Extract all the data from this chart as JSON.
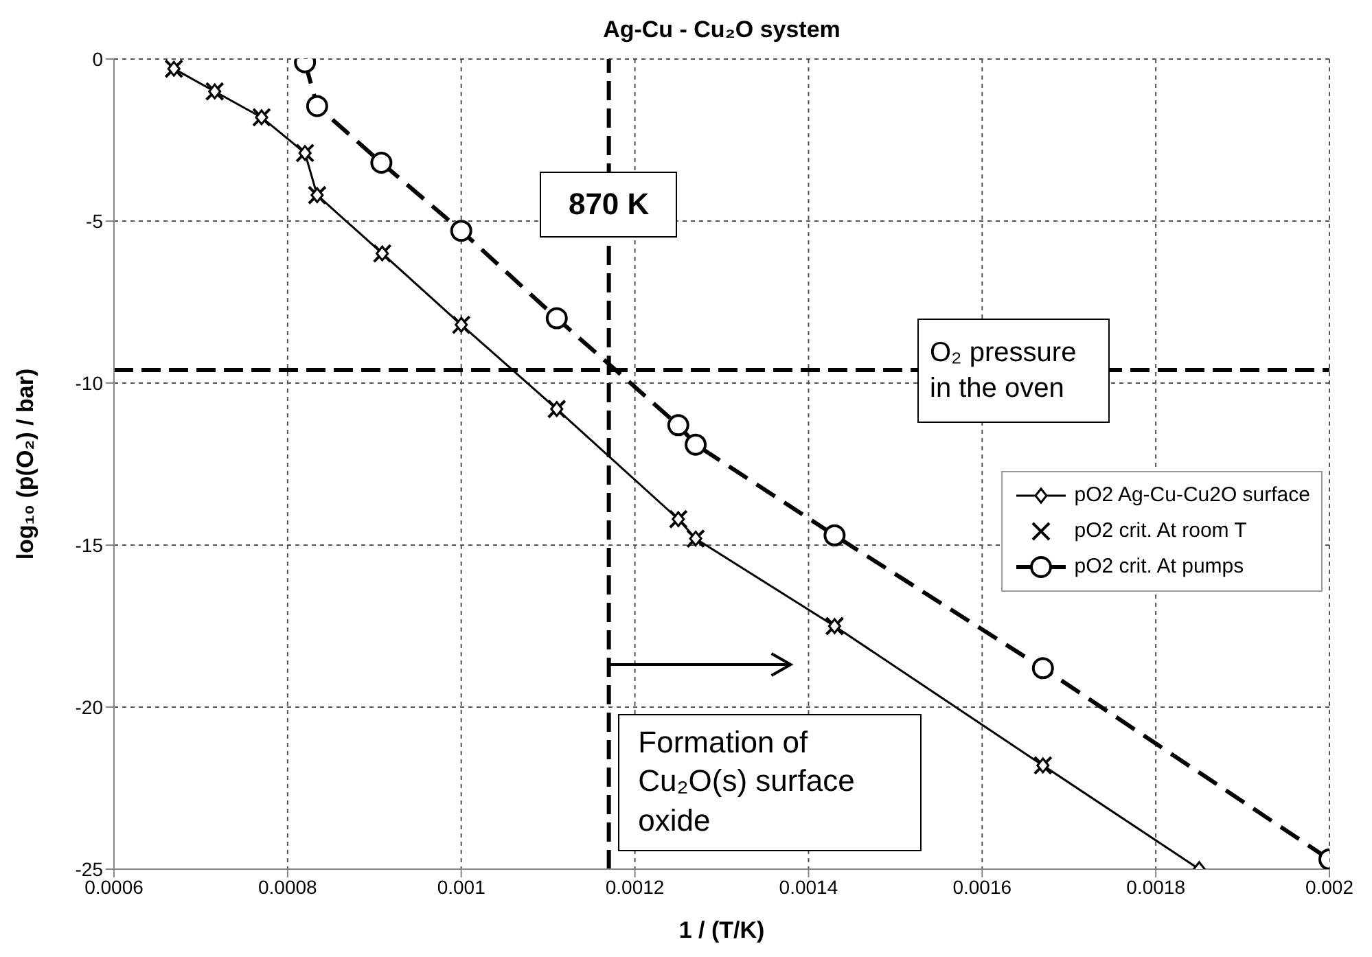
{
  "chart_data": {
    "type": "line",
    "title": "Ag-Cu - Cu₂O system",
    "xlabel": "1 / (T/K)",
    "ylabel": "log₁₀ (p(O₂) / bar)",
    "xlim": [
      0.0006,
      0.002
    ],
    "xticks": [
      0.0006,
      0.0008,
      0.001,
      0.0012,
      0.0014,
      0.0016,
      0.0018,
      0.002
    ],
    "ylim": [
      -25,
      0
    ],
    "yticks": [
      -25,
      -20,
      -15,
      -10,
      -5,
      0
    ],
    "grid": true,
    "legend": "right",
    "series": [
      {
        "name": "pO2 Ag-Cu-Cu2O surface",
        "color": "#000000",
        "marker": "diamond",
        "line_style": "solid",
        "x": [
          0.000669,
          0.000716,
          0.00077,
          0.00082,
          0.000834,
          0.000909,
          0.001,
          0.00111,
          0.00125,
          0.00127,
          0.00143,
          0.00167,
          0.00185
        ],
        "values": [
          -0.3,
          -1,
          -1.8,
          -2.9,
          -4.2,
          -6,
          -8.2,
          -10.8,
          -14.2,
          -14.8,
          -17.5,
          -21.8,
          -25
        ]
      },
      {
        "name": "pO2 crit. At room T",
        "type": "scatter",
        "color": "#000000",
        "marker": "cross",
        "x": [
          0.000669,
          0.000716,
          0.00077,
          0.00082,
          0.000834,
          0.000909,
          0.001,
          0.00111,
          0.00125,
          0.00127,
          0.00143,
          0.00167
        ],
        "values": [
          -0.3,
          -1,
          -1.8,
          -2.9,
          -4.2,
          -6,
          -8.2,
          -10.8,
          -14.2,
          -14.8,
          -17.5,
          -21.8
        ]
      },
      {
        "name": "pO2 crit. At pumps",
        "color": "#000000",
        "marker": "circle",
        "line_style": "dashed",
        "x": [
          0.00082,
          0.000834,
          0.000908,
          0.001,
          0.00111,
          0.00125,
          0.00127,
          0.00143,
          0.00167,
          0.002
        ],
        "values": [
          -0.1,
          -1.45,
          -3.2,
          -5.3,
          -8,
          -11.3,
          -11.9,
          -14.7,
          -18.8,
          -24.7
        ]
      }
    ],
    "ref_lines": [
      {
        "axis": "x",
        "value": 0.00117,
        "label": "870 K",
        "color": "#000000",
        "line_style": "dashed"
      },
      {
        "axis": "y",
        "value": -9.6,
        "label": "O₂ pressure in the oven",
        "color": "#000000",
        "line_style": "dashed"
      }
    ],
    "annotations": [
      "Formation of Cu₂O(s) surface oxide"
    ]
  }
}
